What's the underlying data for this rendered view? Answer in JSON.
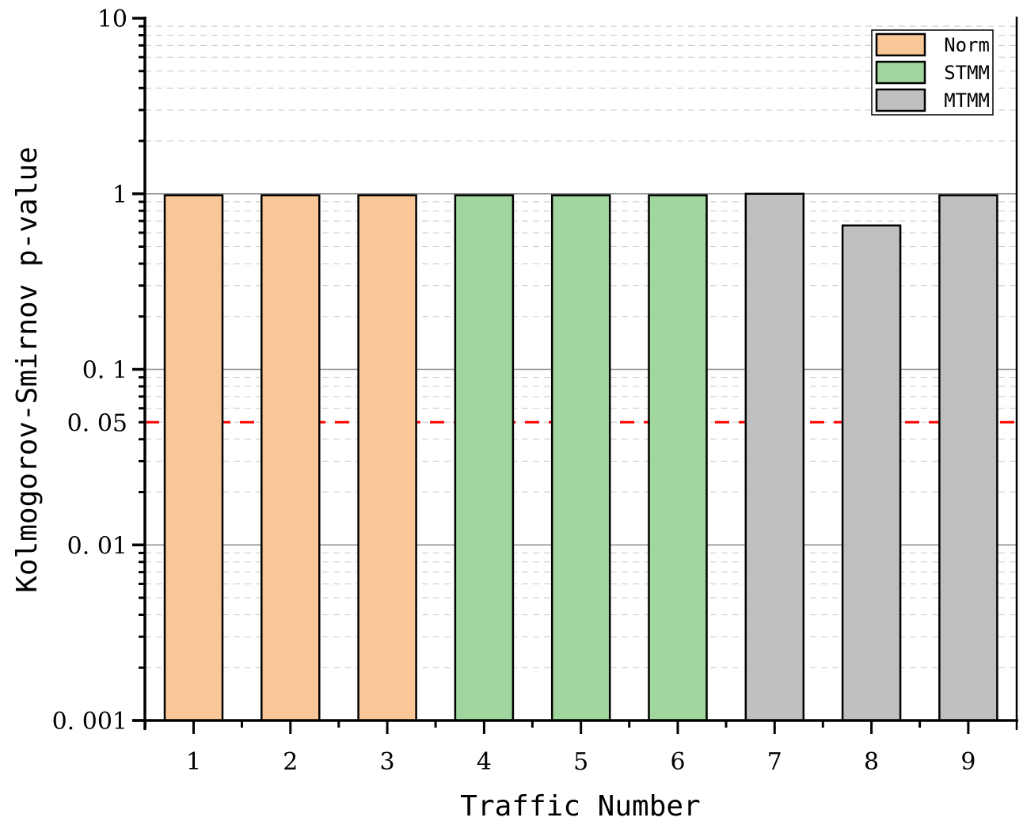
{
  "chart_data": {
    "type": "bar",
    "title": "",
    "xlabel": "Traffic Number",
    "ylabel": "Kolmogorov-Smirnov p-value",
    "yscale": "log",
    "ylim": [
      0.001,
      10
    ],
    "categories": [
      "1",
      "2",
      "3",
      "4",
      "5",
      "6",
      "7",
      "8",
      "9"
    ],
    "values": [
      0.98,
      0.98,
      0.98,
      0.98,
      0.98,
      0.98,
      1.0,
      0.66,
      0.98
    ],
    "groups": [
      "Norm",
      "Norm",
      "Norm",
      "STMM",
      "STMM",
      "STMM",
      "MTMM",
      "MTMM",
      "MTMM"
    ],
    "series": [
      {
        "name": "Norm",
        "color": "#F9C797",
        "categories": [
          "1",
          "2",
          "3"
        ],
        "values": [
          0.98,
          0.98,
          0.98
        ]
      },
      {
        "name": "STMM",
        "color": "#A1D69E",
        "categories": [
          "4",
          "5",
          "6"
        ],
        "values": [
          0.98,
          0.98,
          0.98
        ]
      },
      {
        "name": "MTMM",
        "color": "#BFBFBF",
        "categories": [
          "7",
          "8",
          "9"
        ],
        "values": [
          1.0,
          0.66,
          0.98
        ]
      }
    ],
    "y_ticks": [
      {
        "value": 10,
        "label": "10"
      },
      {
        "value": 1,
        "label": "1"
      },
      {
        "value": 0.1,
        "label": "0.1"
      },
      {
        "value": 0.05,
        "label": "0.05"
      },
      {
        "value": 0.01,
        "label": "0.01"
      },
      {
        "value": 0.001,
        "label": "0.001"
      }
    ],
    "reference_line": {
      "value": 0.05,
      "style": "dashed",
      "color": "#FF0000"
    },
    "grid": {
      "major": "solid gray at decades",
      "minor": "dashed light gray"
    },
    "legend": {
      "position": "upper right",
      "entries": [
        "Norm",
        "STMM",
        "MTMM"
      ]
    }
  }
}
